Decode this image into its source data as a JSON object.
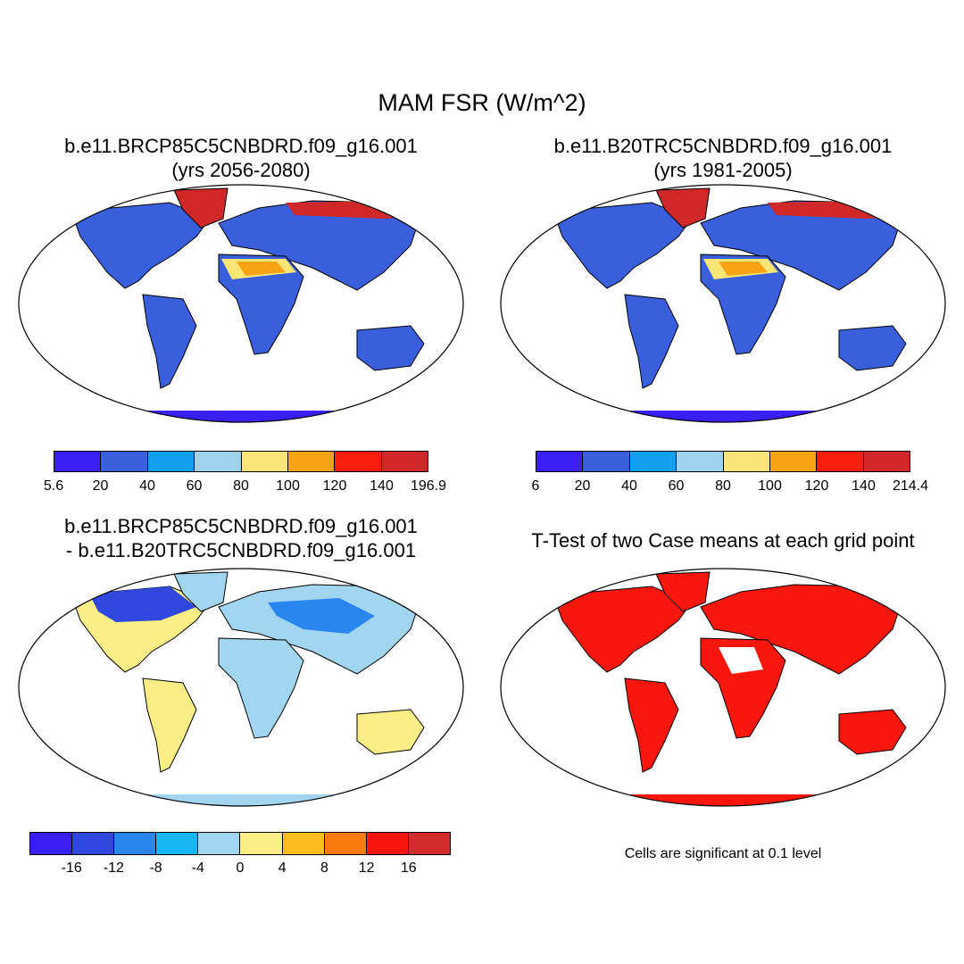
{
  "title": "MAM FSR (W/m^2)",
  "panels": {
    "p1": {
      "line1": "b.e11.BRCP85C5CNBDRD.f09_g16.001",
      "line2": "(yrs 2056-2080)"
    },
    "p2": {
      "line1": "b.e11.B20TRC5CNBDRD.f09_g16.001",
      "line2": "(yrs 1981-2005)"
    },
    "p3": {
      "line1": "b.e11.BRCP85C5CNBDRD.f09_g16.001",
      "line2": "- b.e11.B20TRC5CNBDRD.f09_g16.001"
    },
    "p4": {
      "line1": "T-Test of two Case means at each grid point"
    }
  },
  "colorbars": {
    "cb1": {
      "colors": [
        "#3a1ff5",
        "#3a5fdc",
        "#14a0f0",
        "#9ed2ef",
        "#fae676",
        "#f7a314",
        "#f71f0c",
        "#d02828"
      ],
      "labels": [
        "5.6",
        "20",
        "40",
        "60",
        "80",
        "100",
        "120",
        "140",
        "196.9"
      ]
    },
    "cb2": {
      "colors": [
        "#3a1ff5",
        "#3a5fdc",
        "#14a0f0",
        "#9ed2ef",
        "#fae676",
        "#f7a314",
        "#f71f0c",
        "#d02828"
      ],
      "labels": [
        "6",
        "20",
        "40",
        "60",
        "80",
        "100",
        "120",
        "140",
        "214.4"
      ]
    },
    "cb3": {
      "colors": [
        "#3a1ff5",
        "#2f47dc",
        "#2a86ef",
        "#17b7f3",
        "#a2d6f0",
        "#fbee86",
        "#fbbc1d",
        "#f97b0d",
        "#f9170d",
        "#d22b2b"
      ],
      "labels": [
        "-16",
        "-12",
        "-8",
        "-4",
        "0",
        "4",
        "8",
        "12",
        "16"
      ]
    }
  },
  "footnote": "Cells are significant at 0.1 level"
}
